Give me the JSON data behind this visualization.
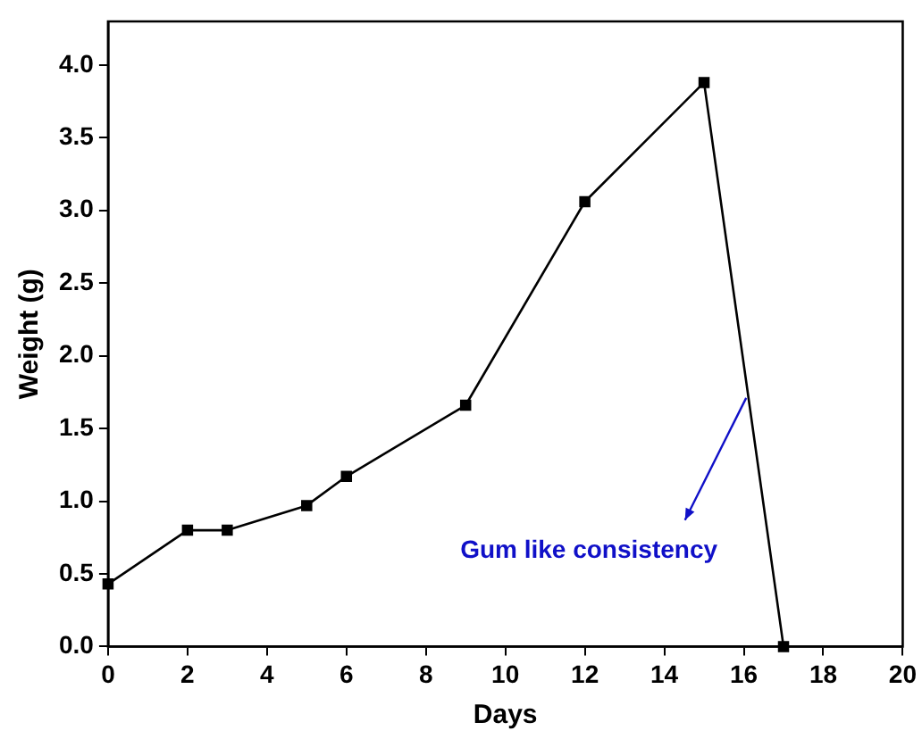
{
  "chart_data": {
    "type": "line",
    "xlabel": "Days",
    "ylabel": "Weight (g)",
    "x": [
      0,
      2,
      3,
      5,
      6,
      9,
      12,
      15,
      17
    ],
    "series": [
      {
        "color": "#000000",
        "values": [
          0.43,
          0.8,
          0.8,
          0.97,
          1.17,
          1.66,
          3.06,
          3.88,
          0
        ]
      }
    ],
    "xlim": [
      0,
      20
    ],
    "xticks": [
      0,
      2,
      4,
      6,
      8,
      10,
      12,
      14,
      16,
      18,
      20
    ],
    "ylim": [
      0,
      4.3
    ],
    "yticks": [
      {
        "value": 0,
        "label": "0.0"
      },
      {
        "value": 0.5,
        "label": "0.5"
      },
      {
        "value": 1,
        "label": "1.0"
      },
      {
        "value": 1.5,
        "label": "1.5"
      },
      {
        "value": 2,
        "label": "2.0"
      },
      {
        "value": 2.5,
        "label": "2.5"
      },
      {
        "value": 3,
        "label": "3.0"
      },
      {
        "value": 3.5,
        "label": "3.5"
      },
      {
        "value": 4,
        "label": "4.0"
      }
    ],
    "annotations": [
      "Gum like consistency"
    ],
    "marker": "square",
    "line_style": "solid",
    "grid": false,
    "legend": false
  }
}
